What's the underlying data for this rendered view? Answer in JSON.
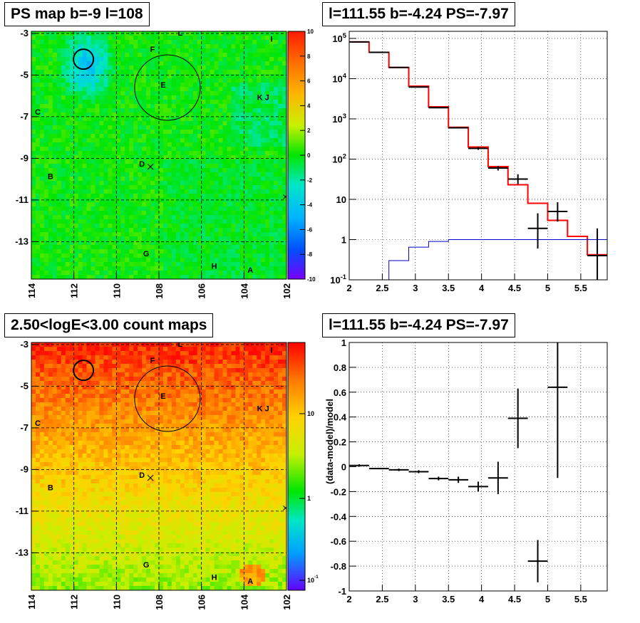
{
  "colors": {
    "model_line": "#ff0000",
    "data_points": "#000000",
    "lower_model": "#0000cc",
    "grid": "#000000"
  },
  "chart_data": [
    {
      "type": "heatmap",
      "title": "PS map b=-9 l=108",
      "x_ticks": [
        "114",
        "112",
        "110",
        "108",
        "106",
        "104",
        "102"
      ],
      "y_ticks": [
        "-3",
        "-5",
        "-7",
        "-9",
        "-11",
        "-13"
      ],
      "xlim": [
        114,
        102
      ],
      "ylim": [
        -14.8,
        -2.9
      ],
      "colorbar_ticks": [
        "10",
        "8",
        "6",
        "4",
        "2",
        "0",
        "-2",
        "-4",
        "-6",
        "-8",
        "-10"
      ],
      "colorbar_range": [
        -10,
        10
      ],
      "source_labels": [
        {
          "label": "L",
          "l": 107.0,
          "b": -3.1
        },
        {
          "label": "I",
          "l": 102.7,
          "b": -3.4
        },
        {
          "label": "F",
          "l": 108.3,
          "b": -3.9
        },
        {
          "label": "E",
          "l": 107.8,
          "b": -5.6
        },
        {
          "label": "K J",
          "l": 103.1,
          "b": -6.2
        },
        {
          "label": "C",
          "l": 113.7,
          "b": -6.9
        },
        {
          "label": "D",
          "l": 108.8,
          "b": -9.4
        },
        {
          "label": "B",
          "l": 113.1,
          "b": -10.0
        },
        {
          "label": "G",
          "l": 108.6,
          "b": -13.7
        },
        {
          "label": "H",
          "l": 105.4,
          "b": -14.3
        },
        {
          "label": "A",
          "l": 103.7,
          "b": -14.5
        }
      ]
    },
    {
      "type": "line",
      "title": "l=111.55 b=-4.24 PS=-7.97",
      "x_ticks": [
        "2",
        "2.5",
        "3",
        "3.5",
        "4",
        "4.5",
        "5",
        "5.5"
      ],
      "y_ticks": [
        "10^-1",
        "1",
        "10",
        "10^2",
        "10^3",
        "10^4",
        "10^5"
      ],
      "xlim": [
        2.0,
        5.9
      ],
      "ylim": [
        0.1,
        150000
      ],
      "log_y": true,
      "grid": true,
      "model_bins": [
        {
          "x0": 2.0,
          "x1": 2.3,
          "y": 82000
        },
        {
          "x0": 2.3,
          "x1": 2.6,
          "y": 45000
        },
        {
          "x0": 2.6,
          "x1": 2.9,
          "y": 19000
        },
        {
          "x0": 2.9,
          "x1": 3.2,
          "y": 6500
        },
        {
          "x0": 3.2,
          "x1": 3.5,
          "y": 2000
        },
        {
          "x0": 3.5,
          "x1": 3.8,
          "y": 620
        },
        {
          "x0": 3.8,
          "x1": 4.1,
          "y": 200
        },
        {
          "x0": 4.1,
          "x1": 4.4,
          "y": 65
        },
        {
          "x0": 4.4,
          "x1": 4.7,
          "y": 23
        },
        {
          "x0": 4.7,
          "x1": 5.0,
          "y": 8
        },
        {
          "x0": 5.0,
          "x1": 5.3,
          "y": 3
        },
        {
          "x0": 5.3,
          "x1": 5.6,
          "y": 1.2
        },
        {
          "x0": 5.6,
          "x1": 5.9,
          "y": 0.42
        }
      ],
      "lower_model_bins": [
        {
          "x0": 2.6,
          "x1": 2.9,
          "y": 0.3
        },
        {
          "x0": 2.9,
          "x1": 3.2,
          "y": 0.65
        },
        {
          "x0": 3.2,
          "x1": 3.5,
          "y": 0.9
        },
        {
          "x0": 3.5,
          "x1": 5.9,
          "y": 1.0
        }
      ],
      "data_points": [
        {
          "x": 2.15,
          "y": 82000,
          "xerr": 0.15,
          "ylo": 82000,
          "yhi": 82000
        },
        {
          "x": 2.45,
          "y": 45000,
          "xerr": 0.15,
          "ylo": 45000,
          "yhi": 45000
        },
        {
          "x": 2.75,
          "y": 19000,
          "xerr": 0.15,
          "ylo": 19000,
          "yhi": 19000
        },
        {
          "x": 3.05,
          "y": 6200,
          "xerr": 0.15,
          "ylo": 6200,
          "yhi": 6200
        },
        {
          "x": 3.35,
          "y": 1900,
          "xerr": 0.15,
          "ylo": 1900,
          "yhi": 1900
        },
        {
          "x": 3.65,
          "y": 600,
          "xerr": 0.15,
          "ylo": 600,
          "yhi": 600
        },
        {
          "x": 3.95,
          "y": 185,
          "xerr": 0.15,
          "ylo": 170,
          "yhi": 200
        },
        {
          "x": 4.25,
          "y": 60,
          "xerr": 0.15,
          "ylo": 52,
          "yhi": 68
        },
        {
          "x": 4.55,
          "y": 32,
          "xerr": 0.15,
          "ylo": 24,
          "yhi": 42
        },
        {
          "x": 4.85,
          "y": 1.9,
          "xerr": 0.15,
          "ylo": 0.6,
          "yhi": 4.5
        },
        {
          "x": 5.15,
          "y": 5,
          "xerr": 0.15,
          "ylo": 2.8,
          "yhi": 8.5
        },
        {
          "x": 5.75,
          "y": 0.4,
          "xerr": 0.15,
          "ylo": 0.1,
          "yhi": 1.9
        }
      ]
    },
    {
      "type": "heatmap",
      "title": "2.50<logE<3.00 count maps",
      "x_ticks": [
        "114",
        "112",
        "110",
        "108",
        "106",
        "104",
        "102"
      ],
      "y_ticks": [
        "-3",
        "-5",
        "-7",
        "-9",
        "-11",
        "-13"
      ],
      "xlim": [
        114,
        102
      ],
      "ylim": [
        -14.8,
        -2.9
      ],
      "colorbar_ticks": [
        "10",
        "1",
        "10^-1"
      ],
      "colorbar_log": true,
      "source_labels": [
        {
          "label": "L",
          "l": 107.0,
          "b": -3.1
        },
        {
          "label": "I",
          "l": 102.7,
          "b": -3.4
        },
        {
          "label": "F",
          "l": 108.3,
          "b": -3.9
        },
        {
          "label": "E",
          "l": 107.8,
          "b": -5.6
        },
        {
          "label": "K J",
          "l": 103.1,
          "b": -6.2
        },
        {
          "label": "C",
          "l": 113.7,
          "b": -6.9
        },
        {
          "label": "D",
          "l": 108.8,
          "b": -9.4
        },
        {
          "label": "B",
          "l": 113.1,
          "b": -10.0
        },
        {
          "label": "G",
          "l": 108.6,
          "b": -13.7
        },
        {
          "label": "H",
          "l": 105.4,
          "b": -14.3
        },
        {
          "label": "A",
          "l": 103.7,
          "b": -14.5
        }
      ]
    },
    {
      "type": "scatter",
      "title": "l=111.55 b=-4.24 PS=-7.97",
      "ylabel": "(data-model)/model",
      "x_ticks": [
        "2",
        "2.5",
        "3",
        "3.5",
        "4",
        "4.5",
        "5",
        "5.5"
      ],
      "y_ticks": [
        "-1",
        "-0.8",
        "-0.6",
        "-0.4",
        "-0.2",
        "0",
        "0.2",
        "0.4",
        "0.6",
        "0.8",
        "1"
      ],
      "xlim": [
        2.0,
        5.9
      ],
      "ylim": [
        -1.0,
        1.0
      ],
      "grid": true,
      "points": [
        {
          "x": 2.15,
          "y": 0.01,
          "xerr": 0.15,
          "yerr": 0.01
        },
        {
          "x": 2.45,
          "y": -0.015,
          "xerr": 0.15,
          "yerr": 0.005
        },
        {
          "x": 2.75,
          "y": -0.025,
          "xerr": 0.15,
          "yerr": 0.01
        },
        {
          "x": 3.05,
          "y": -0.04,
          "xerr": 0.15,
          "yerr": 0.012
        },
        {
          "x": 3.35,
          "y": -0.095,
          "xerr": 0.15,
          "yerr": 0.015
        },
        {
          "x": 3.65,
          "y": -0.105,
          "xerr": 0.15,
          "yerr": 0.025
        },
        {
          "x": 3.95,
          "y": -0.16,
          "xerr": 0.15,
          "yerr": 0.04
        },
        {
          "x": 4.25,
          "y": -0.09,
          "xerr": 0.15,
          "yerr": 0.13
        },
        {
          "x": 4.55,
          "y": 0.39,
          "xerr": 0.15,
          "yerr": 0.24
        },
        {
          "x": 4.85,
          "y": -0.76,
          "xerr": 0.15,
          "yerr": 0.17
        },
        {
          "x": 5.15,
          "y": 0.64,
          "xerr": 0.15,
          "yerr": 0.73
        }
      ]
    }
  ]
}
